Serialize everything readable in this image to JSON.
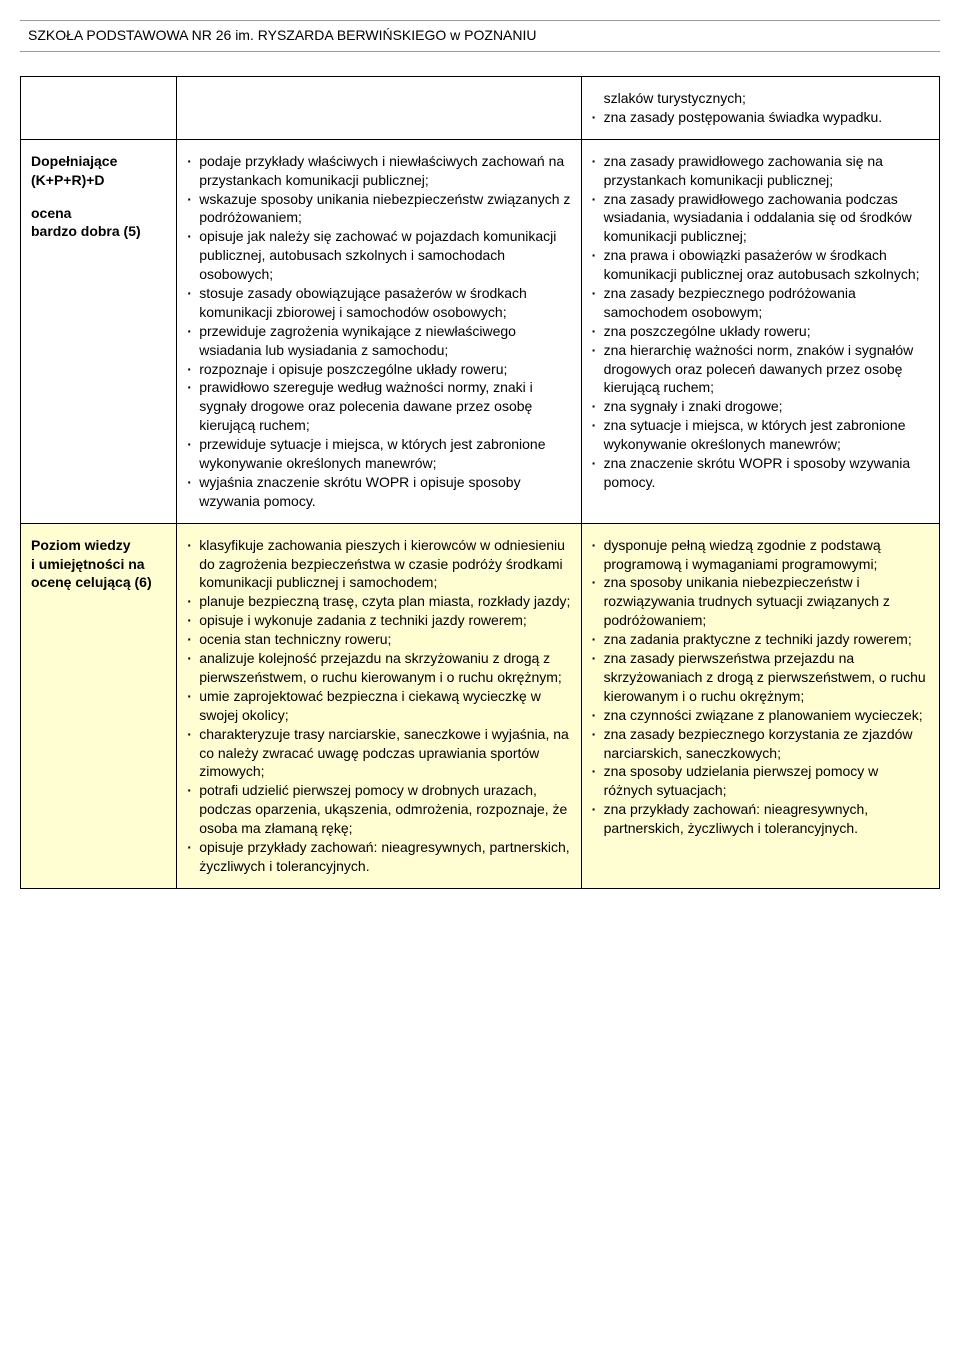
{
  "header": "SZKOŁA PODSTAWOWA NR 26 im. RYSZARDA BERWIŃSKIEGO w POZNANIU",
  "rows": [
    {
      "col1_lines": [],
      "col2_items": [],
      "col3_first_line": "szlaków turystycznych;",
      "col3_items": [
        "zna zasady postępowania świadka wypadku."
      ]
    },
    {
      "col1_lines": [
        "Dopełniające",
        "(K+P+R)+D",
        "",
        "ocena",
        "bardzo dobra (5)"
      ],
      "col2_items": [
        "podaje przykłady właściwych i niewłaściwych zachowań na przystankach komunikacji publicznej;",
        "wskazuje sposoby unikania niebezpieczeństw związanych z podróżowaniem;",
        "opisuje jak należy się zachować w pojazdach komunikacji publicznej, autobusach szkolnych i samochodach osobowych;",
        "stosuje zasady obowiązujące pasażerów w środkach komunikacji zbiorowej i samochodów osobowych;",
        "przewiduje zagrożenia wynikające z niewłaściwego wsiadania lub wysiadania z samochodu;",
        "rozpoznaje i opisuje poszczególne układy roweru;",
        "prawidłowo szereguje według ważności normy, znaki i sygnały drogowe oraz polecenia dawane przez osobę kierującą ruchem;",
        "przewiduje sytuacje i miejsca, w których jest zabronione wykonywanie określonych manewrów;",
        "wyjaśnia znaczenie skrótu WOPR i opisuje sposoby wzywania pomocy."
      ],
      "col3_items": [
        "zna zasady prawidłowego zachowania się na przystankach komunikacji publicznej;",
        "zna zasady prawidłowego zachowania podczas wsiadania, wysiadania i oddalania się od środków komunikacji publicznej;",
        "zna prawa i obowiązki pasażerów w środkach komunikacji publicznej oraz autobusach szkolnych;",
        "zna zasady bezpiecznego podróżowania samochodem osobowym;",
        "zna poszczególne układy roweru;",
        "zna hierarchię ważności norm, znaków i sygnałów drogowych oraz poleceń dawanych przez osobę kierującą ruchem;",
        "zna sygnały i znaki drogowe;",
        "zna sytuacje i miejsca, w których jest zabronione wykonywanie określonych manewrów;",
        "zna znaczenie skrótu WOPR i sposoby wzywania pomocy."
      ]
    },
    {
      "yellow": true,
      "col1_lines": [
        "Poziom wiedzy",
        "i umiejętności na",
        "ocenę celującą (6)"
      ],
      "col2_items": [
        "klasyfikuje zachowania pieszych i kierowców w odniesieniu do zagrożenia bezpieczeństwa w czasie podróży środkami komunikacji publicznej i samochodem;",
        "planuje bezpieczną trasę, czyta plan miasta, rozkłady jazdy;",
        "opisuje i wykonuje zadania z techniki jazdy rowerem;",
        "ocenia stan techniczny roweru;",
        "analizuje kolejność przejazdu na skrzyżowaniu z drogą z pierwszeństwem, o ruchu kierowanym i o ruchu okrężnym;",
        "umie zaprojektować bezpieczna i ciekawą wycieczkę w swojej okolicy;",
        "charakteryzuje trasy narciarskie, saneczkowe i wyjaśnia, na co należy zwracać uwagę podczas uprawiania sportów zimowych;",
        "potrafi udzielić pierwszej pomocy w drobnych urazach, podczas oparzenia, ukąszenia, odmrożenia, rozpoznaje, że osoba ma złamaną rękę;",
        "opisuje przykłady zachowań: nieagresywnych, partnerskich, życzliwych i tolerancyjnych."
      ],
      "col3_items": [
        "dysponuje pełną wiedzą zgodnie z podstawą programową i wymaganiami programowymi;",
        "zna sposoby unikania niebezpieczeństw i rozwiązywania trudnych sytuacji związanych z podróżowaniem;",
        "zna zadania praktyczne z techniki jazdy rowerem;",
        "zna zasady pierwszeństwa przejazdu na skrzyżowaniach z drogą z pierwszeństwem, o ruchu kierowanym i o ruchu okrężnym;",
        "zna czynności związane z planowaniem wycieczek;",
        "zna zasady bezpiecznego korzystania ze zjazdów narciarskich, saneczkowych;",
        "zna sposoby udzielania pierwszej pomocy w różnych sytuacjach;",
        "zna przykłady zachowań: nieagresywnych, partnerskich, życzliwych i tolerancyjnych."
      ]
    }
  ]
}
